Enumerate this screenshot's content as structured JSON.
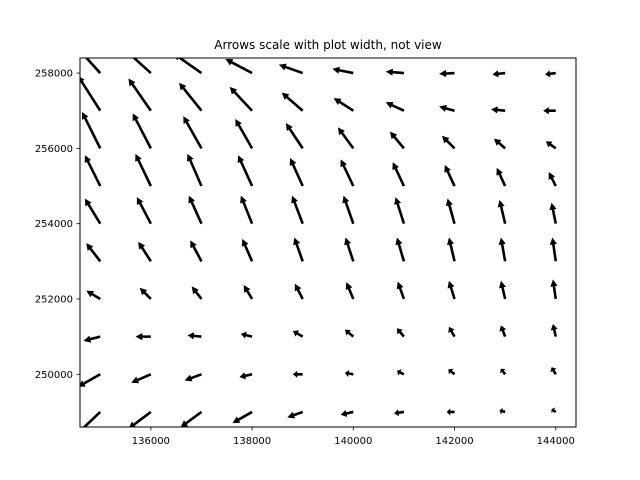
{
  "chart_data": {
    "type": "quiver",
    "title": "Arrows scale with plot width, not view",
    "xlabel": "",
    "ylabel": "",
    "xlim": [
      134600,
      144400
    ],
    "ylim": [
      248600,
      258400
    ],
    "xticks": [
      136000,
      138000,
      140000,
      142000,
      144000
    ],
    "yticks": [
      250000,
      252000,
      254000,
      256000,
      258000
    ],
    "grid": false,
    "arrow_color": "#000000",
    "grid_x": [
      135000,
      136000,
      137000,
      138000,
      139000,
      140000,
      141000,
      142000,
      143000,
      144000
    ],
    "grid_y": [
      249000,
      250000,
      251000,
      252000,
      253000,
      254000,
      255000,
      256000,
      257000,
      258000
    ],
    "vectors": [
      [
        [
          -1.0,
          -0.95
        ],
        [
          -0.8,
          -0.6
        ],
        [
          -0.75,
          -0.55
        ],
        [
          -0.7,
          -0.4
        ],
        [
          -0.55,
          -0.2
        ],
        [
          -0.45,
          -0.1
        ],
        [
          -0.35,
          -0.05
        ],
        [
          -0.28,
          0.0
        ],
        [
          -0.2,
          0.05
        ],
        [
          -0.15,
          0.1
        ]
      ],
      [
        [
          -0.8,
          -0.45
        ],
        [
          -0.7,
          -0.3
        ],
        [
          -0.6,
          -0.22
        ],
        [
          -0.45,
          -0.1
        ],
        [
          -0.35,
          0.0
        ],
        [
          -0.3,
          0.05
        ],
        [
          -0.25,
          0.12
        ],
        [
          -0.22,
          0.18
        ],
        [
          -0.15,
          0.2
        ],
        [
          -0.15,
          0.25
        ]
      ],
      [
        [
          -0.6,
          -0.15
        ],
        [
          -0.55,
          0.0
        ],
        [
          -0.5,
          0.05
        ],
        [
          -0.4,
          0.1
        ],
        [
          -0.35,
          0.2
        ],
        [
          -0.3,
          0.25
        ],
        [
          -0.25,
          0.3
        ],
        [
          -0.2,
          0.35
        ],
        [
          -0.15,
          0.4
        ],
        [
          -0.1,
          0.45
        ]
      ],
      [
        [
          -0.5,
          0.3
        ],
        [
          -0.4,
          0.4
        ],
        [
          -0.35,
          0.45
        ],
        [
          -0.3,
          0.5
        ],
        [
          -0.28,
          0.55
        ],
        [
          -0.25,
          0.6
        ],
        [
          -0.22,
          0.62
        ],
        [
          -0.2,
          0.65
        ],
        [
          -0.15,
          0.65
        ],
        [
          -0.1,
          0.7
        ]
      ],
      [
        [
          -0.5,
          0.65
        ],
        [
          -0.45,
          0.7
        ],
        [
          -0.4,
          0.75
        ],
        [
          -0.35,
          0.8
        ],
        [
          -0.3,
          0.85
        ],
        [
          -0.28,
          0.85
        ],
        [
          -0.25,
          0.85
        ],
        [
          -0.2,
          0.85
        ],
        [
          -0.15,
          0.85
        ],
        [
          -0.12,
          0.85
        ]
      ],
      [
        [
          -0.55,
          0.9
        ],
        [
          -0.5,
          0.95
        ],
        [
          -0.45,
          1.0
        ],
        [
          -0.4,
          1.0
        ],
        [
          -0.38,
          1.0
        ],
        [
          -0.35,
          1.0
        ],
        [
          -0.3,
          0.95
        ],
        [
          -0.25,
          0.9
        ],
        [
          -0.2,
          0.85
        ],
        [
          -0.15,
          0.75
        ]
      ],
      [
        [
          -0.55,
          1.1
        ],
        [
          -0.55,
          1.15
        ],
        [
          -0.5,
          1.15
        ],
        [
          -0.5,
          1.1
        ],
        [
          -0.45,
          1.0
        ],
        [
          -0.45,
          0.95
        ],
        [
          -0.4,
          0.85
        ],
        [
          -0.35,
          0.75
        ],
        [
          -0.3,
          0.65
        ],
        [
          -0.25,
          0.5
        ]
      ],
      [
        [
          -0.65,
          1.3
        ],
        [
          -0.65,
          1.25
        ],
        [
          -0.65,
          1.15
        ],
        [
          -0.6,
          1.05
        ],
        [
          -0.6,
          0.9
        ],
        [
          -0.55,
          0.75
        ],
        [
          -0.5,
          0.6
        ],
        [
          -0.45,
          0.45
        ],
        [
          -0.4,
          0.35
        ],
        [
          -0.35,
          0.25
        ]
      ],
      [
        [
          -0.8,
          1.25
        ],
        [
          -0.8,
          1.15
        ],
        [
          -0.8,
          1.0
        ],
        [
          -0.8,
          0.85
        ],
        [
          -0.75,
          0.65
        ],
        [
          -0.7,
          0.45
        ],
        [
          -0.65,
          0.3
        ],
        [
          -0.55,
          0.15
        ],
        [
          -0.5,
          0.05
        ],
        [
          -0.45,
          0.0
        ]
      ],
      [
        [
          -1.0,
          1.1
        ],
        [
          -1.0,
          0.9
        ],
        [
          -1.0,
          0.7
        ],
        [
          -0.95,
          0.5
        ],
        [
          -0.85,
          0.3
        ],
        [
          -0.75,
          0.15
        ],
        [
          -0.65,
          0.05
        ],
        [
          -0.55,
          -0.03
        ],
        [
          -0.45,
          -0.05
        ],
        [
          -0.38,
          -0.05
        ]
      ]
    ]
  }
}
